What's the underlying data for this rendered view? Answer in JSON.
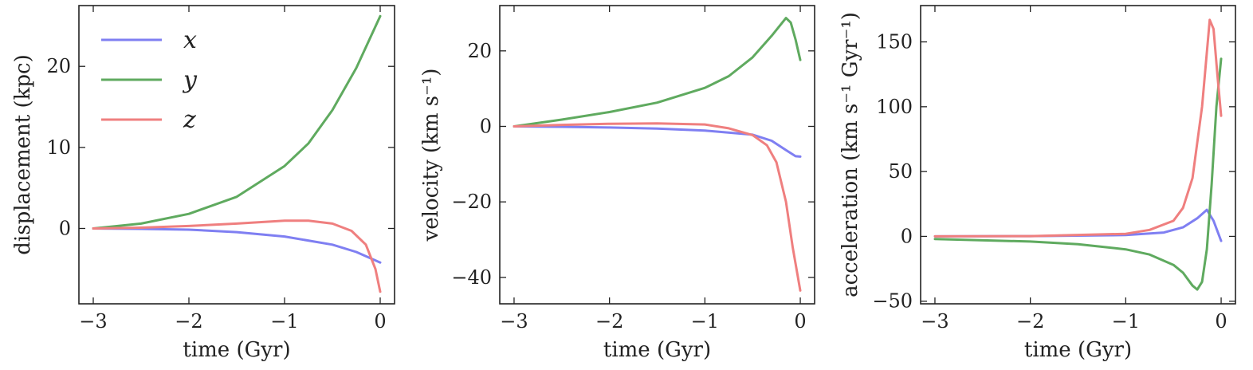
{
  "colors": {
    "x": "#7f7ff2",
    "y": "#5faa5f",
    "z": "#ef7f7f"
  },
  "chart_data": [
    {
      "type": "line",
      "xlabel": "time (Gyr)",
      "ylabel": "displacement (kpc)",
      "xlim": [
        -3.15,
        0.15
      ],
      "ylim": [
        -9.3,
        27.5
      ],
      "xticks": [
        -3,
        -2,
        -1,
        0
      ],
      "xtick_labels": [
        "−3",
        "−2",
        "−1",
        "0"
      ],
      "yticks": [
        0,
        10,
        20
      ],
      "ytick_labels": [
        "0",
        "10",
        "20"
      ],
      "legend": {
        "position": "upper-left",
        "entries": [
          "x",
          "y",
          "z"
        ]
      },
      "series": [
        {
          "name": "x",
          "x": [
            -3,
            -2.5,
            -2,
            -1.5,
            -1,
            -0.5,
            -0.25,
            0
          ],
          "y": [
            0,
            -0.05,
            -0.15,
            -0.45,
            -1.0,
            -2.0,
            -2.9,
            -4.2
          ]
        },
        {
          "name": "y",
          "x": [
            -3,
            -2.5,
            -2,
            -1.5,
            -1,
            -0.75,
            -0.5,
            -0.25,
            0
          ],
          "y": [
            0,
            0.6,
            1.8,
            3.9,
            7.7,
            10.5,
            14.6,
            19.8,
            26.2
          ]
        },
        {
          "name": "z",
          "x": [
            -3,
            -2.5,
            -2,
            -1.5,
            -1,
            -0.75,
            -0.5,
            -0.3,
            -0.15,
            -0.05,
            0
          ],
          "y": [
            0,
            0.1,
            0.3,
            0.6,
            0.95,
            0.95,
            0.6,
            -0.3,
            -2.0,
            -5.0,
            -7.8
          ]
        }
      ]
    },
    {
      "type": "line",
      "xlabel": "time (Gyr)",
      "ylabel": "velocity (km s⁻¹)",
      "xlim": [
        -3.15,
        0.15
      ],
      "ylim": [
        -47,
        32
      ],
      "xticks": [
        -3,
        -2,
        -1,
        0
      ],
      "xtick_labels": [
        "−3",
        "−2",
        "−1",
        "0"
      ],
      "yticks": [
        -40,
        -20,
        0,
        20
      ],
      "ytick_labels": [
        "−40",
        "−20",
        "0",
        "20"
      ],
      "series": [
        {
          "name": "x",
          "x": [
            -3,
            -2.5,
            -2,
            -1.5,
            -1,
            -0.5,
            -0.3,
            -0.15,
            -0.05,
            0
          ],
          "y": [
            0,
            -0.1,
            -0.3,
            -0.6,
            -1.1,
            -2.2,
            -3.8,
            -6.3,
            -7.9,
            -8.0
          ]
        },
        {
          "name": "y",
          "x": [
            -3,
            -2.5,
            -2,
            -1.5,
            -1,
            -0.75,
            -0.5,
            -0.3,
            -0.15,
            -0.1,
            -0.05,
            0
          ],
          "y": [
            0,
            1.8,
            3.8,
            6.3,
            10.2,
            13.3,
            18.3,
            24.0,
            28.7,
            27.5,
            23.0,
            17.6
          ]
        },
        {
          "name": "z",
          "x": [
            -3,
            -2.5,
            -2,
            -1.5,
            -1,
            -0.75,
            -0.5,
            -0.35,
            -0.25,
            -0.15,
            -0.08,
            0
          ],
          "y": [
            0,
            0.4,
            0.7,
            0.8,
            0.5,
            -0.5,
            -2.3,
            -5.0,
            -9.5,
            -20.0,
            -32.0,
            -43.5
          ]
        }
      ]
    },
    {
      "type": "line",
      "xlabel": "time (Gyr)",
      "ylabel": "acceleration (km s⁻¹ Gyr⁻¹)",
      "xlim": [
        -3.15,
        0.15
      ],
      "ylim": [
        -52,
        178
      ],
      "xticks": [
        -3,
        -2,
        -1,
        0
      ],
      "xtick_labels": [
        "−3",
        "−2",
        "−1",
        "0"
      ],
      "yticks": [
        -50,
        0,
        50,
        100,
        150
      ],
      "ytick_labels": [
        "−50",
        "0",
        "50",
        "100",
        "150"
      ],
      "series": [
        {
          "name": "x",
          "x": [
            -3,
            -2,
            -1,
            -0.6,
            -0.4,
            -0.25,
            -0.15,
            -0.08,
            0
          ],
          "y": [
            0,
            0.2,
            1.0,
            3.0,
            7.0,
            14.0,
            20.5,
            12.0,
            -3.5
          ]
        },
        {
          "name": "y",
          "x": [
            -3,
            -2,
            -1.5,
            -1,
            -0.75,
            -0.5,
            -0.4,
            -0.3,
            -0.25,
            -0.2,
            -0.15,
            -0.1,
            -0.05,
            0
          ],
          "y": [
            -2,
            -4,
            -6,
            -10,
            -14,
            -22,
            -28,
            -38,
            -41,
            -35,
            -10,
            40,
            100,
            137
          ]
        },
        {
          "name": "z",
          "x": [
            -3,
            -2,
            -1,
            -0.75,
            -0.5,
            -0.4,
            -0.3,
            -0.2,
            -0.12,
            -0.08,
            -0.04,
            0
          ],
          "y": [
            0,
            0.2,
            2.0,
            5.0,
            12.0,
            22.0,
            45.0,
            100.0,
            167.0,
            160.0,
            125.0,
            93.0
          ]
        }
      ]
    }
  ]
}
